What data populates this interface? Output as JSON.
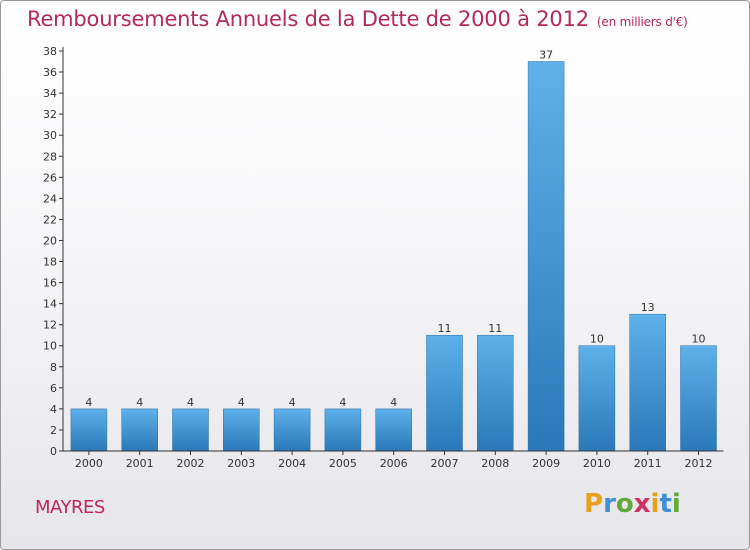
{
  "header": {
    "title": "Remboursements Annuels de la Dette de 2000 à 2012",
    "unit_note": "(en milliers d'€)"
  },
  "footer": {
    "commune": "MAYRES",
    "brand": "Proxiti"
  },
  "colors": {
    "title": "#b5285e",
    "bar_top": "#5eb1ea",
    "bar_bottom": "#2a78b8",
    "axis": "#333333"
  },
  "chart_data": {
    "type": "bar",
    "title": "Remboursements Annuels de la Dette de 2000 à 2012",
    "subtitle": "(en milliers d'€)",
    "xlabel": "",
    "ylabel": "",
    "categories": [
      "2000",
      "2001",
      "2002",
      "2003",
      "2004",
      "2005",
      "2006",
      "2007",
      "2008",
      "2009",
      "2010",
      "2011",
      "2012"
    ],
    "values": [
      4,
      4,
      4,
      4,
      4,
      4,
      4,
      11,
      11,
      37,
      10,
      13,
      10
    ],
    "ylim": [
      0,
      38
    ],
    "yticks": [
      0,
      2,
      4,
      6,
      8,
      10,
      12,
      14,
      16,
      18,
      20,
      22,
      24,
      26,
      28,
      30,
      32,
      34,
      36,
      38
    ],
    "grid": false,
    "legend": "none"
  }
}
